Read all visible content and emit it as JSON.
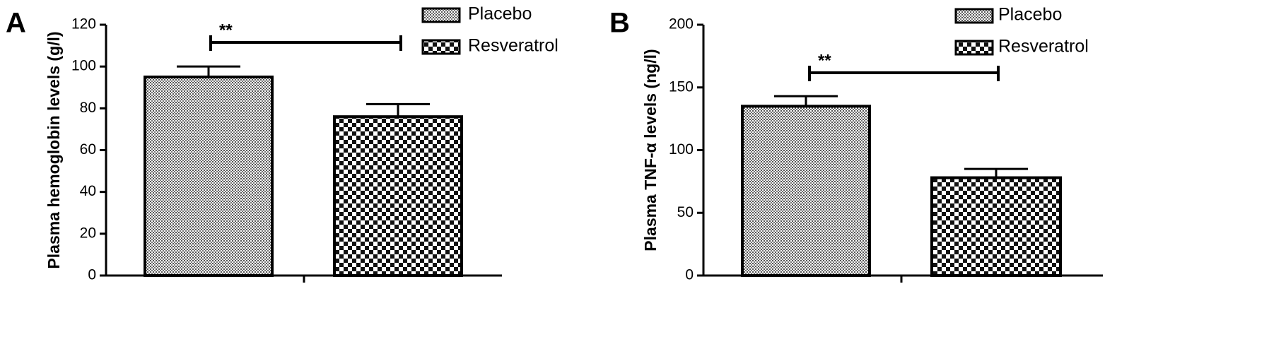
{
  "chart_data": [
    {
      "type": "bar",
      "panel": "A",
      "ylabel": "Plasma hemoglobin levels (g/l)",
      "ylim": [
        0,
        120
      ],
      "yticks": [
        0,
        20,
        40,
        60,
        80,
        100,
        120
      ],
      "series": [
        {
          "name": "Placebo",
          "color": "#000000",
          "values": [
            95
          ],
          "errors": [
            5
          ]
        },
        {
          "name": "Resveratrol",
          "color": "#000000",
          "values": [
            76
          ],
          "errors": [
            6
          ]
        }
      ],
      "annotation": "**",
      "legend": "upper right"
    },
    {
      "type": "bar",
      "panel": "B",
      "ylabel": "Plasma TNF-α levels (ng/l)",
      "ylim": [
        0,
        200
      ],
      "yticks": [
        0,
        50,
        100,
        150,
        200
      ],
      "series": [
        {
          "name": "Placebo",
          "color": "#000000",
          "values": [
            135
          ],
          "errors": [
            8
          ]
        },
        {
          "name": "Resveratrol",
          "color": "#000000",
          "values": [
            78
          ],
          "errors": [
            7
          ]
        }
      ],
      "annotation": "**",
      "legend": "upper right"
    }
  ]
}
